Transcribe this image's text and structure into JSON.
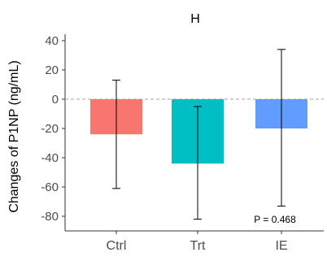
{
  "chart_data": {
    "type": "bar",
    "title": "H",
    "xlabel": "",
    "ylabel": "Changes of P1NP (ng/mL)",
    "categories": [
      "Ctrl",
      "Trt",
      "IE"
    ],
    "values": [
      -24,
      -44,
      -20
    ],
    "error_low": [
      -61,
      -82,
      -73
    ],
    "error_high": [
      13,
      -5,
      34
    ],
    "colors": [
      "#f8766d",
      "#00bfc4",
      "#619cff"
    ],
    "ylim": [
      -90,
      40
    ],
    "yticks": [
      40,
      20,
      0,
      -20,
      -40,
      -60,
      -80
    ],
    "reference_line": 0,
    "annotation": "P = 0.468",
    "grid": false
  }
}
